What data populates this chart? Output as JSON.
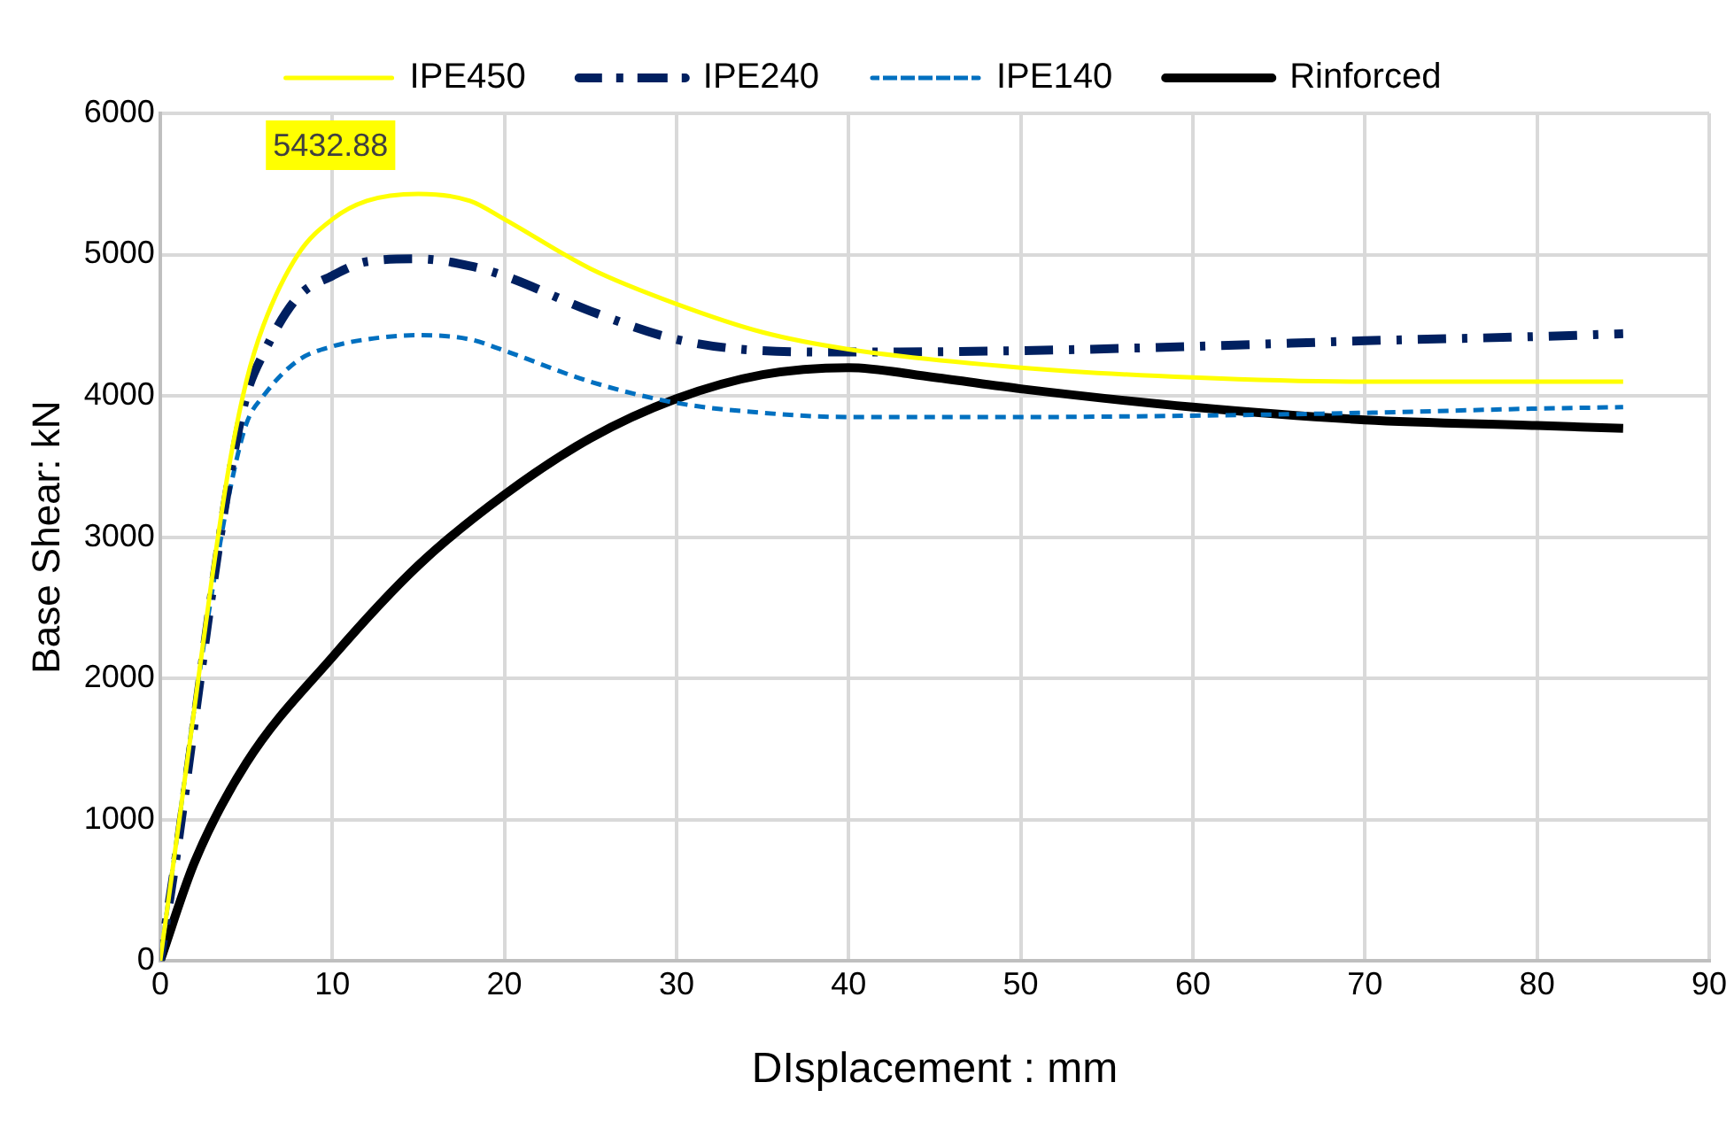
{
  "chart_data": {
    "type": "line",
    "xlabel": "DIsplacement : mm",
    "ylabel": "Base Shear: kN",
    "xlim": [
      0,
      90
    ],
    "xticks": [
      0,
      10,
      20,
      30,
      40,
      50,
      60,
      70,
      80,
      90
    ],
    "ylim": [
      0,
      6000
    ],
    "yticks": [
      0,
      1000,
      2000,
      3000,
      4000,
      5000,
      6000
    ],
    "grid": true,
    "legend": "top",
    "marker": "none",
    "annotations": [
      "5432.88"
    ],
    "series": [
      {
        "name": "IPE450",
        "color": "#ffff00",
        "line_style": "solid",
        "x": [
          0,
          1,
          2,
          3,
          4,
          5,
          6,
          8,
          10,
          12,
          15,
          18,
          20,
          25,
          30,
          35,
          40,
          50,
          60,
          70,
          80,
          85
        ],
        "values": [
          0,
          900,
          1800,
          2700,
          3500,
          4100,
          4500,
          5000,
          5250,
          5380,
          5430,
          5380,
          5250,
          4900,
          4650,
          4450,
          4330,
          4200,
          4130,
          4100,
          4100,
          4100
        ]
      },
      {
        "name": "IPE240",
        "color": "#002060",
        "line_style": "dashdot",
        "x": [
          0,
          1,
          2,
          3,
          4,
          5,
          6,
          8,
          10,
          12,
          15,
          18,
          20,
          25,
          30,
          35,
          40,
          50,
          60,
          70,
          80,
          85
        ],
        "values": [
          0,
          800,
          1700,
          2600,
          3400,
          4000,
          4300,
          4700,
          4850,
          4950,
          4970,
          4920,
          4850,
          4600,
          4400,
          4320,
          4310,
          4320,
          4350,
          4390,
          4420,
          4440
        ]
      },
      {
        "name": "IPE140",
        "color": "#0070c0",
        "line_style": "dashed",
        "x": [
          0,
          1,
          2,
          3,
          4,
          5,
          6,
          8,
          10,
          12,
          15,
          18,
          20,
          25,
          30,
          35,
          40,
          50,
          60,
          70,
          80,
          85
        ],
        "values": [
          0,
          900,
          1800,
          2600,
          3300,
          3800,
          4000,
          4250,
          4350,
          4400,
          4430,
          4400,
          4320,
          4100,
          3950,
          3880,
          3850,
          3850,
          3860,
          3880,
          3910,
          3920
        ]
      },
      {
        "name": "Rinforced",
        "color": "#000000",
        "line_style": "solid",
        "x": [
          0,
          2,
          5,
          10,
          15,
          20,
          25,
          30,
          35,
          40,
          45,
          50,
          60,
          70,
          80,
          85
        ],
        "values": [
          0,
          700,
          1400,
          2150,
          2800,
          3300,
          3700,
          3980,
          4150,
          4200,
          4130,
          4050,
          3920,
          3830,
          3790,
          3770
        ]
      }
    ]
  }
}
